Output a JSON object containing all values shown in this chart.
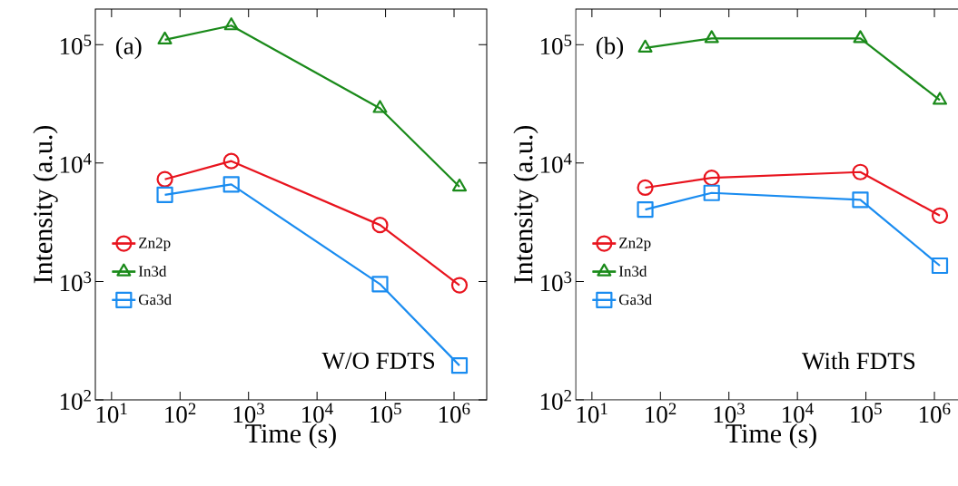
{
  "chart_data": [
    {
      "type": "line",
      "xlabel": "Time (s)",
      "ylabel": "Intensity (a.u.)",
      "log": "xy",
      "legend": "left",
      "line_style": "solid",
      "xlim": [
        5.8,
        3000000
      ],
      "ylim": [
        100,
        200000
      ],
      "xticks": [
        {
          "value": 10,
          "label": "10$^{1}$"
        },
        {
          "value": 100,
          "label": "10$^{2}$"
        },
        {
          "value": 1000,
          "label": "10$^{3}$"
        },
        {
          "value": 10000,
          "label": "10$^{4}$"
        },
        {
          "value": 100000,
          "label": "10$^{5}$"
        },
        {
          "value": 1000000,
          "label": "10$^{6}$"
        }
      ],
      "yticks": [
        {
          "value": 100,
          "label": "10$^{2}$"
        },
        {
          "value": 1000,
          "label": "10$^{3}$"
        },
        {
          "value": 10000,
          "label": "10$^{4}$"
        },
        {
          "value": 100000,
          "label": "10$^{5}$"
        }
      ],
      "x": [
        60,
        560,
        83000,
        1200000
      ],
      "annotations": [
        "(a)",
        "W/O FDTS"
      ],
      "series": [
        {
          "name": "Zn2p",
          "color": "#e8141e",
          "marker": "circle",
          "values": [
            7300,
            10400,
            3000,
            930
          ]
        },
        {
          "name": "In3d",
          "color": "#1a8a1a",
          "marker": "triangle",
          "values": [
            110000,
            145000,
            29000,
            6300
          ]
        },
        {
          "name": "Ga3d",
          "color": "#1a8cf0",
          "marker": "square",
          "values": [
            5400,
            6600,
            950,
            195
          ]
        }
      ]
    },
    {
      "type": "line",
      "xlabel": "Time (s)",
      "ylabel": "Intensity (a.u.)",
      "log": "xy",
      "legend": "left",
      "line_style": "solid",
      "xlim": [
        5.8,
        3000000
      ],
      "ylim": [
        100,
        200000
      ],
      "xticks": [
        {
          "value": 10,
          "label": "10$^{1}$"
        },
        {
          "value": 100,
          "label": "10$^{2}$"
        },
        {
          "value": 1000,
          "label": "10$^{3}$"
        },
        {
          "value": 10000,
          "label": "10$^{4}$"
        },
        {
          "value": 100000,
          "label": "10$^{5}$"
        },
        {
          "value": 1000000,
          "label": "10$^{6}$"
        }
      ],
      "yticks": [
        {
          "value": 100,
          "label": "10$^{2}$"
        },
        {
          "value": 1000,
          "label": "10$^{3}$"
        },
        {
          "value": 10000,
          "label": "10$^{4}$"
        },
        {
          "value": 100000,
          "label": "10$^{5}$"
        }
      ],
      "x": [
        60,
        560,
        83000,
        1200000
      ],
      "annotations": [
        "(b)",
        "With FDTS"
      ],
      "series": [
        {
          "name": "Zn2p",
          "color": "#e8141e",
          "marker": "circle",
          "values": [
            6200,
            7500,
            8400,
            3600
          ]
        },
        {
          "name": "In3d",
          "color": "#1a8a1a",
          "marker": "triangle",
          "values": [
            94000,
            113000,
            113000,
            34000
          ]
        },
        {
          "name": "Ga3d",
          "color": "#1a8cf0",
          "marker": "square",
          "values": [
            4050,
            5600,
            4900,
            1360
          ]
        }
      ]
    }
  ]
}
